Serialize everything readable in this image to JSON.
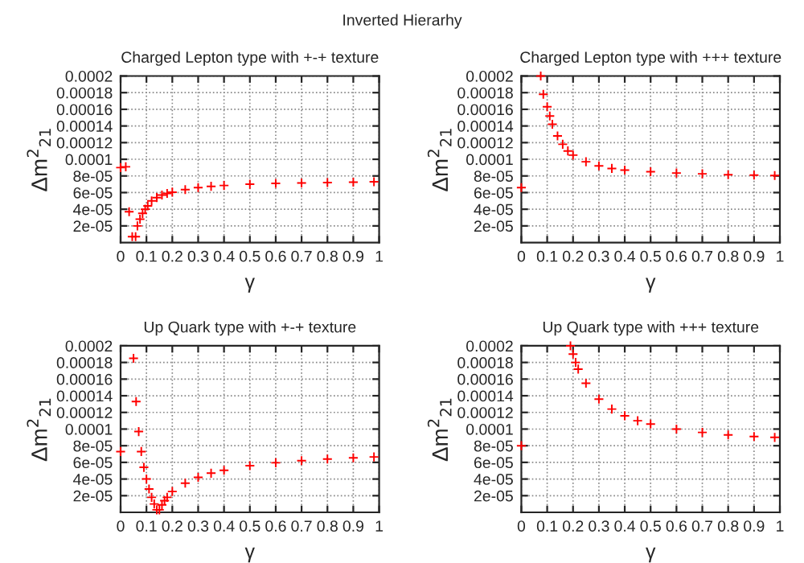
{
  "chart_data": [
    {
      "type": "scatter",
      "title": "Charged Lepton type with +-+ texture",
      "xlabel": "γ",
      "ylabel": "Δm$^{2}$$_{21}$",
      "annotations": [
        "Inverted Hierarhy"
      ],
      "marker": "cross",
      "grid": true,
      "x": [
        0,
        0.02,
        0.033,
        0.045,
        0.058,
        0.065,
        0.075,
        0.085,
        0.095,
        0.105,
        0.12,
        0.14,
        0.16,
        0.18,
        0.2,
        0.25,
        0.3,
        0.35,
        0.4,
        0.5,
        0.6,
        0.7,
        0.8,
        0.9,
        0.98
      ],
      "series": [
        {
          "color": "#ff0000",
          "values": [
            9e-05,
            9.1e-05,
            3.7e-05,
            7e-06,
            7e-06,
            2e-05,
            2.8e-05,
            3.5e-05,
            4e-05,
            4.4e-05,
            5e-05,
            5.4e-05,
            5.7e-05,
            5.9e-05,
            6.05e-05,
            6.35e-05,
            6.6e-05,
            6.75e-05,
            6.85e-05,
            7e-05,
            7.1e-05,
            7.15e-05,
            7.2e-05,
            7.25e-05,
            7.3e-05
          ]
        }
      ],
      "xlim": [
        0,
        1
      ],
      "ylim": [
        0,
        0.0002
      ],
      "xticks": [
        0,
        0.1,
        0.2,
        0.3,
        0.4,
        0.5,
        0.6,
        0.7,
        0.8,
        0.9,
        1
      ],
      "yticks": [
        2e-05,
        4e-05,
        6e-05,
        8e-05,
        0.0001,
        0.00012,
        0.00014,
        0.00016,
        0.00018,
        0.0002
      ]
    },
    {
      "type": "scatter",
      "title": "Charged Lepton type with +++ texture",
      "xlabel": "γ",
      "ylabel": "Δm$^{2}$$_{21}$",
      "marker": "cross",
      "grid": true,
      "x": [
        0,
        0.075,
        0.085,
        0.1,
        0.11,
        0.12,
        0.14,
        0.16,
        0.18,
        0.2,
        0.25,
        0.3,
        0.35,
        0.4,
        0.5,
        0.6,
        0.7,
        0.8,
        0.9,
        0.98
      ],
      "series": [
        {
          "color": "#ff0000",
          "values": [
            6.6e-05,
            0.0002,
            0.000178,
            0.000163,
            0.000152,
            0.000142,
            0.000128,
            0.000118,
            0.00011,
            0.000105,
            9.7e-05,
            9.2e-05,
            8.9e-05,
            8.7e-05,
            8.5e-05,
            8.35e-05,
            8.25e-05,
            8.15e-05,
            8.1e-05,
            8.05e-05
          ]
        }
      ],
      "xlim": [
        0,
        1
      ],
      "ylim": [
        0,
        0.0002
      ],
      "xticks": [
        0,
        0.1,
        0.2,
        0.3,
        0.4,
        0.5,
        0.6,
        0.7,
        0.8,
        0.9,
        1
      ],
      "yticks": [
        2e-05,
        4e-05,
        6e-05,
        8e-05,
        0.0001,
        0.00012,
        0.00014,
        0.00016,
        0.00018,
        0.0002
      ]
    },
    {
      "type": "scatter",
      "title": "Up Quark type with +-+ texture",
      "xlabel": "γ",
      "ylabel": "Δm$^{2}$$_{21}$",
      "marker": "cross",
      "grid": true,
      "x": [
        0,
        0.05,
        0.06,
        0.07,
        0.08,
        0.09,
        0.1,
        0.11,
        0.12,
        0.13,
        0.14,
        0.15,
        0.16,
        0.17,
        0.18,
        0.2,
        0.25,
        0.3,
        0.35,
        0.4,
        0.5,
        0.6,
        0.7,
        0.8,
        0.9,
        0.98
      ],
      "series": [
        {
          "color": "#ff0000",
          "values": [
            7.3e-05,
            0.000185,
            0.000133,
            9.7e-05,
            7.3e-05,
            5.4e-05,
            4e-05,
            2.8e-05,
            1.8e-05,
            1e-05,
            3e-06,
            3e-06,
            9e-06,
            1.4e-05,
            1.8e-05,
            2.5e-05,
            3.5e-05,
            4.2e-05,
            4.7e-05,
            5.05e-05,
            5.6e-05,
            5.95e-05,
            6.2e-05,
            6.4e-05,
            6.55e-05,
            6.65e-05
          ]
        }
      ],
      "xlim": [
        0,
        1
      ],
      "ylim": [
        0,
        0.0002
      ],
      "xticks": [
        0,
        0.1,
        0.2,
        0.3,
        0.4,
        0.5,
        0.6,
        0.7,
        0.8,
        0.9,
        1
      ],
      "yticks": [
        2e-05,
        4e-05,
        6e-05,
        8e-05,
        0.0001,
        0.00012,
        0.00014,
        0.00016,
        0.00018,
        0.0002
      ]
    },
    {
      "type": "scatter",
      "title": "Up Quark type with +++ texture",
      "xlabel": "γ",
      "ylabel": "Δm$^{2}$$_{21}$",
      "marker": "cross",
      "grid": true,
      "x": [
        0,
        0.19,
        0.2,
        0.21,
        0.22,
        0.25,
        0.3,
        0.35,
        0.4,
        0.45,
        0.5,
        0.6,
        0.7,
        0.8,
        0.9,
        0.98
      ],
      "series": [
        {
          "color": "#ff0000",
          "values": [
            8e-05,
            0.0002,
            0.00019,
            0.00018,
            0.000172,
            0.000155,
            0.000136,
            0.000124,
            0.000116,
            0.00011,
            0.000106,
            0.0001,
            9.6e-05,
            9.3e-05,
            9.1e-05,
            9e-05
          ]
        }
      ],
      "xlim": [
        0,
        1
      ],
      "ylim": [
        0,
        0.0002
      ],
      "xticks": [
        0,
        0.1,
        0.2,
        0.3,
        0.4,
        0.5,
        0.6,
        0.7,
        0.8,
        0.9,
        1
      ],
      "yticks": [
        2e-05,
        4e-05,
        6e-05,
        8e-05,
        0.0001,
        0.00012,
        0.00014,
        0.00016,
        0.00018,
        0.0002
      ]
    }
  ]
}
